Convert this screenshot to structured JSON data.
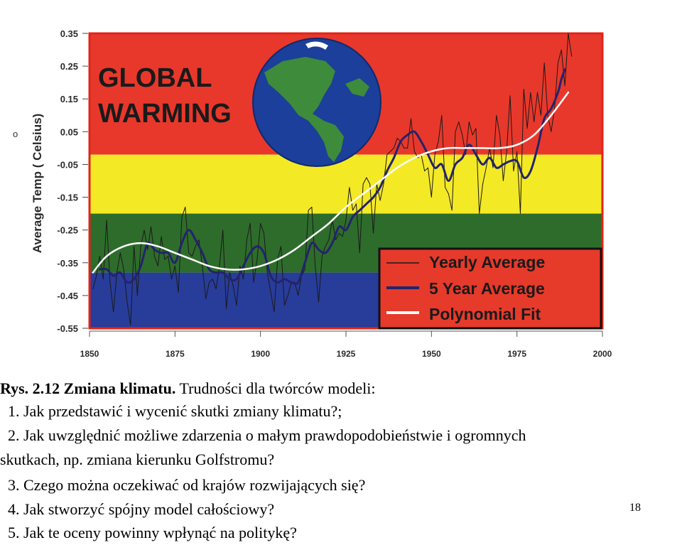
{
  "chart_data": {
    "type": "line",
    "title_lines": [
      "GLOBAL",
      "WARMING"
    ],
    "ylabel": "Average Temp ( Celsius)",
    "ylabel_mark": "o",
    "xlim": [
      1850,
      2000
    ],
    "ylim": [
      -0.55,
      0.35
    ],
    "xticks": [
      "1850",
      "1875",
      "1900",
      "1925",
      "1950",
      "1975",
      "2000"
    ],
    "yticks": [
      "0.35",
      "0.25",
      "0.15",
      "0.05",
      "-0.05",
      "-0.15",
      "-0.25",
      "-0.35",
      "-0.45",
      "-0.55"
    ],
    "grid": false,
    "legend_position": "bottom-right",
    "background_bands": [
      {
        "from": 0.35,
        "to": -0.02,
        "color": "#e8382b"
      },
      {
        "from": -0.02,
        "to": -0.2,
        "color": "#f4e925"
      },
      {
        "from": -0.2,
        "to": -0.38,
        "color": "#2e6c2b"
      },
      {
        "from": -0.38,
        "to": -0.55,
        "color": "#283c9a"
      }
    ],
    "colors": {
      "plot_edge": "#e02418",
      "legend_box": "#e63a2b",
      "legend_border": "#111111",
      "legend_text": "#1a1a1a",
      "title": "#1a1a1a",
      "axis_text": "#2a2a2a",
      "globe_ocean": "#1b3f9a",
      "globe_land": "#3d8b3b"
    },
    "series": [
      {
        "name": "Yearly Average",
        "color": "#1a1a1a",
        "width": 1,
        "x": [
          1851,
          1852,
          1853,
          1854,
          1855,
          1856,
          1857,
          1858,
          1859,
          1860,
          1861,
          1862,
          1863,
          1864,
          1865,
          1866,
          1867,
          1868,
          1869,
          1870,
          1871,
          1872,
          1873,
          1874,
          1875,
          1876,
          1877,
          1878,
          1879,
          1880,
          1881,
          1882,
          1883,
          1884,
          1885,
          1886,
          1887,
          1888,
          1889,
          1890,
          1891,
          1892,
          1893,
          1894,
          1895,
          1896,
          1897,
          1898,
          1899,
          1900,
          1901,
          1902,
          1903,
          1904,
          1905,
          1906,
          1907,
          1908,
          1909,
          1910,
          1911,
          1912,
          1913,
          1914,
          1915,
          1916,
          1917,
          1918,
          1919,
          1920,
          1921,
          1922,
          1923,
          1924,
          1925,
          1926,
          1927,
          1928,
          1929,
          1930,
          1931,
          1932,
          1933,
          1934,
          1935,
          1936,
          1937,
          1938,
          1939,
          1940,
          1941,
          1942,
          1943,
          1944,
          1945,
          1946,
          1947,
          1948,
          1949,
          1950,
          1951,
          1952,
          1953,
          1954,
          1955,
          1956,
          1957,
          1958,
          1959,
          1960,
          1961,
          1962,
          1963,
          1964,
          1965,
          1966,
          1967,
          1968,
          1969,
          1970,
          1971,
          1972,
          1973,
          1974,
          1975,
          1976,
          1977,
          1978,
          1979,
          1980,
          1981,
          1982,
          1983,
          1984,
          1985,
          1986,
          1987,
          1988,
          1989,
          1990,
          1991
        ],
        "y": [
          -0.43,
          -0.39,
          -0.33,
          -0.4,
          -0.22,
          -0.41,
          -0.5,
          -0.38,
          -0.32,
          -0.37,
          -0.47,
          -0.54,
          -0.3,
          -0.45,
          -0.3,
          -0.25,
          -0.31,
          -0.24,
          -0.33,
          -0.36,
          -0.27,
          -0.34,
          -0.33,
          -0.4,
          -0.36,
          -0.44,
          -0.21,
          -0.18,
          -0.32,
          -0.33,
          -0.3,
          -0.28,
          -0.36,
          -0.46,
          -0.41,
          -0.4,
          -0.43,
          -0.36,
          -0.25,
          -0.49,
          -0.38,
          -0.42,
          -0.48,
          -0.36,
          -0.4,
          -0.28,
          -0.23,
          -0.41,
          -0.34,
          -0.23,
          -0.26,
          -0.38,
          -0.44,
          -0.5,
          -0.34,
          -0.3,
          -0.48,
          -0.45,
          -0.41,
          -0.41,
          -0.45,
          -0.39,
          -0.37,
          -0.19,
          -0.18,
          -0.36,
          -0.47,
          -0.33,
          -0.3,
          -0.28,
          -0.22,
          -0.28,
          -0.26,
          -0.27,
          -0.22,
          -0.12,
          -0.19,
          -0.17,
          -0.32,
          -0.11,
          -0.09,
          -0.11,
          -0.26,
          -0.11,
          -0.16,
          -0.11,
          -0.02,
          -0.01,
          0.0,
          0.03,
          0.02,
          0.0,
          0.0,
          0.09,
          -0.01,
          -0.03,
          -0.02,
          -0.07,
          -0.06,
          -0.15,
          -0.02,
          0.02,
          0.1,
          -0.12,
          -0.14,
          -0.19,
          0.05,
          0.08,
          0.04,
          -0.02,
          0.08,
          0.04,
          0.06,
          -0.2,
          -0.11,
          -0.06,
          0.0,
          -0.06,
          0.1,
          0.04,
          -0.1,
          -0.01,
          0.16,
          -0.07,
          -0.01,
          -0.2,
          0.18,
          0.06,
          0.17,
          0.08,
          0.17,
          0.1,
          0.26,
          0.1,
          0.05,
          0.12,
          0.26,
          0.3,
          0.19,
          0.35,
          0.28
        ]
      },
      {
        "name": "5 Year Average",
        "color": "#23236e",
        "width": 3,
        "x": [
          1853,
          1855,
          1857,
          1859,
          1861,
          1863,
          1865,
          1867,
          1869,
          1871,
          1873,
          1875,
          1877,
          1879,
          1881,
          1883,
          1885,
          1887,
          1889,
          1891,
          1893,
          1895,
          1897,
          1899,
          1901,
          1903,
          1905,
          1907,
          1909,
          1911,
          1913,
          1915,
          1917,
          1919,
          1921,
          1923,
          1925,
          1927,
          1929,
          1931,
          1933,
          1935,
          1937,
          1939,
          1941,
          1943,
          1945,
          1947,
          1949,
          1951,
          1953,
          1955,
          1957,
          1959,
          1961,
          1963,
          1965,
          1967,
          1969,
          1971,
          1973,
          1975,
          1977,
          1979,
          1981,
          1983,
          1985,
          1987,
          1988,
          1989
        ],
        "y": [
          -0.37,
          -0.37,
          -0.39,
          -0.38,
          -0.41,
          -0.4,
          -0.36,
          -0.29,
          -0.31,
          -0.32,
          -0.32,
          -0.35,
          -0.29,
          -0.25,
          -0.28,
          -0.32,
          -0.37,
          -0.38,
          -0.38,
          -0.4,
          -0.4,
          -0.36,
          -0.32,
          -0.3,
          -0.32,
          -0.39,
          -0.41,
          -0.4,
          -0.41,
          -0.41,
          -0.35,
          -0.29,
          -0.31,
          -0.32,
          -0.29,
          -0.24,
          -0.25,
          -0.21,
          -0.19,
          -0.17,
          -0.15,
          -0.12,
          -0.07,
          -0.03,
          0.02,
          0.04,
          0.05,
          0.02,
          -0.02,
          -0.06,
          -0.05,
          -0.1,
          -0.05,
          -0.03,
          0.01,
          -0.02,
          -0.05,
          -0.03,
          -0.06,
          -0.05,
          -0.04,
          -0.04,
          -0.09,
          -0.07,
          0.0,
          0.09,
          0.12,
          0.17,
          0.21,
          0.24
        ]
      },
      {
        "name": "Polynomial Fit",
        "color": "#ffffff",
        "width": 2.5,
        "x": [
          1851,
          1855,
          1860,
          1865,
          1870,
          1875,
          1880,
          1885,
          1890,
          1895,
          1900,
          1905,
          1910,
          1915,
          1920,
          1925,
          1930,
          1935,
          1940,
          1945,
          1950,
          1955,
          1960,
          1965,
          1970,
          1975,
          1980,
          1985,
          1990
        ],
        "y": [
          -0.38,
          -0.33,
          -0.3,
          -0.29,
          -0.3,
          -0.32,
          -0.34,
          -0.36,
          -0.37,
          -0.37,
          -0.36,
          -0.34,
          -0.31,
          -0.27,
          -0.23,
          -0.18,
          -0.14,
          -0.1,
          -0.06,
          -0.03,
          -0.01,
          0.0,
          0.0,
          0.0,
          0.0,
          0.01,
          0.04,
          0.1,
          0.17
        ]
      }
    ]
  },
  "caption": {
    "line1_bold": "Rys. 2.12 Zmiana klimatu.",
    "line1_rest": " Trudności dla twórców modeli:",
    "line2": "1. Jak przedstawić i wycenić skutki zmiany klimatu?;",
    "line3": "2. Jak uwzględnić możliwe zdarzenia o małym prawdopodobieństwie i ogromnych",
    "line4": "skutkach, np. zmiana kierunku Golfstromu?",
    "line5": "3. Czego można oczekiwać od krajów rozwijających się?",
    "line6": "4. Jak stworzyć spójny model całościowy?",
    "line7": "5. Jak te oceny powinny wpłynąć na politykę?"
  },
  "page_number": "18"
}
